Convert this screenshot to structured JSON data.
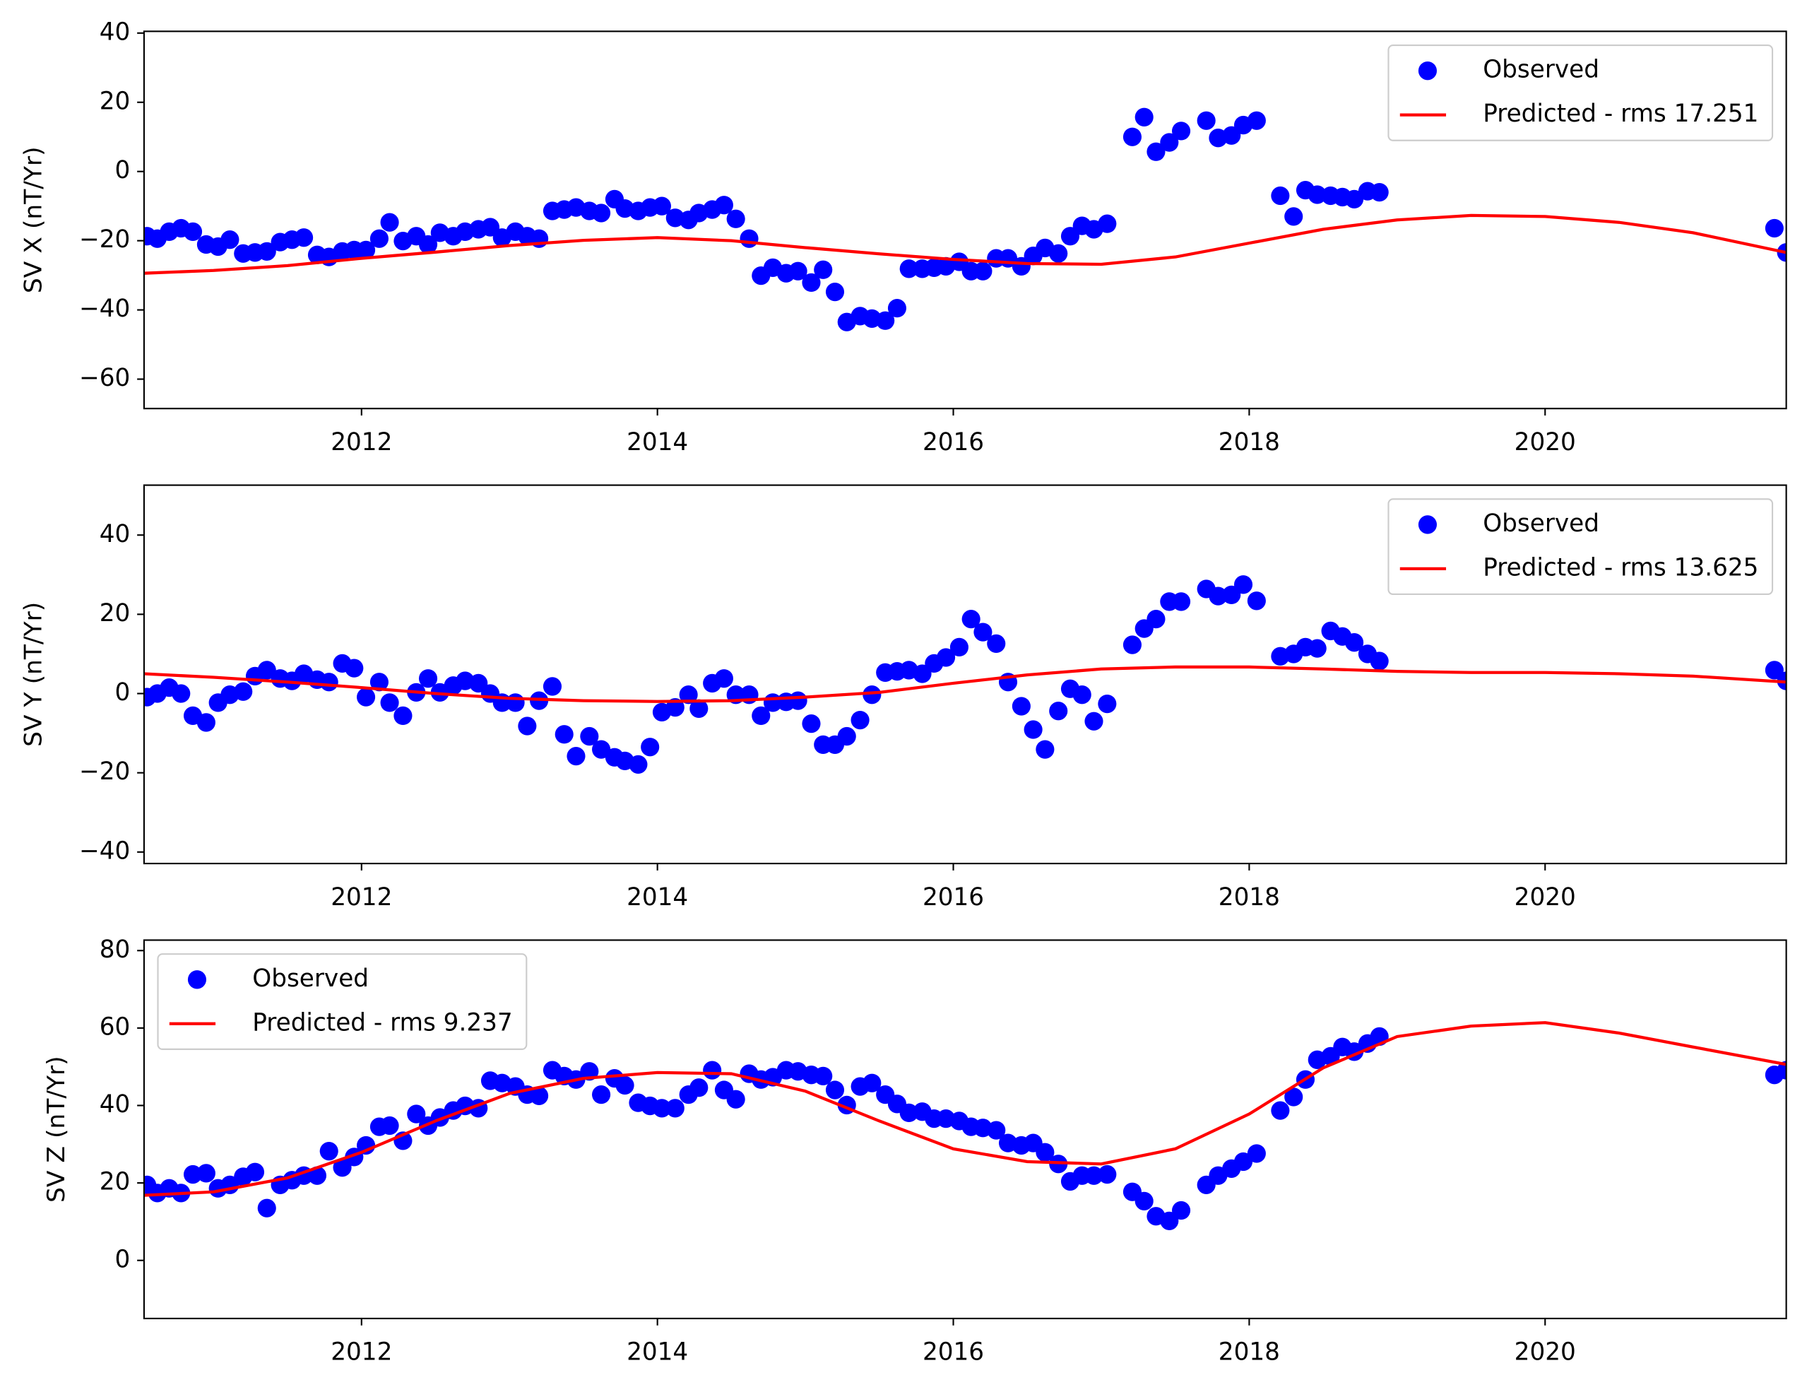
{
  "chart_data": [
    {
      "type": "line",
      "ylabel": "SV X (nT/Yr)",
      "legend": "upper right",
      "grid": false,
      "xlim": [
        2010.53,
        2021.63
      ],
      "xticks": [
        2012,
        2014,
        2016,
        2018,
        2020
      ],
      "ylim": [
        -68.5,
        40.5
      ],
      "yticks": [
        {
          "value": -60,
          "label": "−60"
        },
        {
          "value": -40,
          "label": "−40"
        },
        {
          "value": -20,
          "label": "−20"
        },
        0,
        20,
        40
      ],
      "series": [
        {
          "name": "Observed",
          "color": "#0000ff",
          "style": "markers",
          "x": [
            2010.55,
            2010.62,
            2010.7,
            2010.78,
            2010.86,
            2010.95,
            2011.03,
            2011.11,
            2011.2,
            2011.28,
            2011.36,
            2011.45,
            2011.53,
            2011.61,
            2011.7,
            2011.78,
            2011.87,
            2011.95,
            2012.03,
            2012.12,
            2012.19,
            2012.28,
            2012.37,
            2012.45,
            2012.53,
            2012.62,
            2012.7,
            2012.79,
            2012.87,
            2012.95,
            2013.04,
            2013.12,
            2013.2,
            2013.29,
            2013.37,
            2013.45,
            2013.54,
            2013.62,
            2013.71,
            2013.78,
            2013.87,
            2013.95,
            2014.03,
            2014.12,
            2014.21,
            2014.28,
            2014.37,
            2014.45,
            2014.53,
            2014.62,
            2014.7,
            2014.78,
            2014.87,
            2014.95,
            2015.04,
            2015.12,
            2015.2,
            2015.28,
            2015.37,
            2015.45,
            2015.54,
            2015.62,
            2015.7,
            2015.79,
            2015.87,
            2015.95,
            2016.04,
            2016.12,
            2016.2,
            2016.29,
            2016.37,
            2016.46,
            2016.54,
            2016.62,
            2016.71,
            2016.79,
            2016.87,
            2016.95,
            2017.04,
            2017.21,
            2017.29,
            2017.37,
            2017.46,
            2017.54,
            2017.71,
            2017.79,
            2017.88,
            2017.96,
            2018.05,
            2018.21,
            2018.3,
            2018.38,
            2018.46,
            2018.55,
            2018.63,
            2018.71,
            2018.8,
            2018.88,
            2021.55,
            2021.63
          ],
          "values": [
            -18.7,
            -19.4,
            -17.4,
            -16.4,
            -17.4,
            -21.1,
            -21.7,
            -19.7,
            -23.7,
            -23.4,
            -23.1,
            -20.4,
            -19.7,
            -19.1,
            -24.1,
            -24.7,
            -23.1,
            -22.7,
            -22.7,
            -19.4,
            -14.7,
            -20.1,
            -18.7,
            -21.1,
            -17.7,
            -18.7,
            -17.4,
            -16.7,
            -16.1,
            -19.1,
            -17.4,
            -18.7,
            -19.4,
            -11.4,
            -11.0,
            -10.4,
            -11.4,
            -12.0,
            -8.0,
            -10.7,
            -11.4,
            -10.4,
            -10.0,
            -13.4,
            -14.0,
            -12.0,
            -11.0,
            -9.7,
            -13.7,
            -19.4,
            -30.1,
            -27.8,
            -29.4,
            -28.8,
            -32.1,
            -28.4,
            -34.8,
            -43.5,
            -41.8,
            -42.5,
            -43.1,
            -39.5,
            -28.1,
            -28.1,
            -27.8,
            -27.4,
            -26.1,
            -28.8,
            -28.8,
            -25.1,
            -25.1,
            -27.4,
            -24.4,
            -22.1,
            -23.7,
            -18.7,
            -15.7,
            -16.7,
            -15.1,
            10.0,
            15.7,
            5.7,
            8.4,
            11.7,
            14.7,
            9.7,
            10.4,
            13.4,
            14.7,
            -7.0,
            -13.0,
            -5.4,
            -6.7,
            -7.0,
            -7.4,
            -8.0,
            -5.7,
            -6.0,
            -16.4,
            -23.4
          ]
        },
        {
          "name": "Predicted - rms 17.251",
          "color": "#ff0000",
          "style": "line",
          "x": [
            2010.53,
            2011,
            2011.5,
            2012,
            2012.5,
            2013,
            2013.5,
            2014,
            2014.5,
            2015,
            2015.5,
            2016,
            2016.5,
            2017,
            2017.5,
            2018,
            2018.5,
            2019,
            2019.5,
            2020,
            2020.5,
            2021,
            2021.63
          ],
          "values": [
            -29.4,
            -28.6,
            -27.2,
            -25.1,
            -23.3,
            -21.4,
            -19.9,
            -19.1,
            -20.0,
            -22.0,
            -23.8,
            -25.4,
            -26.6,
            -26.8,
            -24.7,
            -20.7,
            -16.7,
            -14.0,
            -12.7,
            -13.0,
            -14.7,
            -17.7,
            -23.4
          ]
        }
      ]
    },
    {
      "type": "line",
      "ylabel": "SV Y (nT/Yr)",
      "legend": "upper right",
      "grid": false,
      "xlim": [
        2010.53,
        2021.63
      ],
      "xticks": [
        2012,
        2014,
        2016,
        2018,
        2020
      ],
      "ylim": [
        -42.9,
        52.6
      ],
      "yticks": [
        {
          "value": -40,
          "label": "−40"
        },
        {
          "value": -20,
          "label": "−20"
        },
        0,
        20,
        40
      ],
      "series": [
        {
          "name": "Observed",
          "color": "#0000ff",
          "style": "markers",
          "x": [
            2010.55,
            2010.62,
            2010.7,
            2010.78,
            2010.86,
            2010.95,
            2011.03,
            2011.11,
            2011.2,
            2011.28,
            2011.36,
            2011.45,
            2011.53,
            2011.61,
            2011.7,
            2011.78,
            2011.87,
            2011.95,
            2012.03,
            2012.12,
            2012.19,
            2012.28,
            2012.37,
            2012.45,
            2012.53,
            2012.62,
            2012.7,
            2012.79,
            2012.87,
            2012.95,
            2013.04,
            2013.12,
            2013.2,
            2013.29,
            2013.37,
            2013.45,
            2013.54,
            2013.62,
            2013.71,
            2013.78,
            2013.87,
            2013.95,
            2014.03,
            2014.12,
            2014.21,
            2014.28,
            2014.37,
            2014.45,
            2014.53,
            2014.62,
            2014.7,
            2014.78,
            2014.87,
            2014.95,
            2015.04,
            2015.12,
            2015.2,
            2015.28,
            2015.37,
            2015.45,
            2015.54,
            2015.62,
            2015.7,
            2015.79,
            2015.87,
            2015.95,
            2016.04,
            2016.12,
            2016.2,
            2016.29,
            2016.37,
            2016.46,
            2016.54,
            2016.62,
            2016.71,
            2016.79,
            2016.87,
            2016.95,
            2017.04,
            2017.21,
            2017.29,
            2017.37,
            2017.46,
            2017.54,
            2017.71,
            2017.79,
            2017.88,
            2017.96,
            2018.05,
            2018.21,
            2018.3,
            2018.38,
            2018.46,
            2018.55,
            2018.63,
            2018.71,
            2018.8,
            2018.88,
            2021.55,
            2021.63
          ],
          "values": [
            -0.9,
            0,
            1.5,
            0,
            -5.6,
            -7.3,
            -2.3,
            -0.3,
            0.5,
            4.4,
            5.9,
            3.8,
            3.2,
            5.0,
            3.5,
            2.9,
            7.6,
            6.4,
            -0.9,
            2.9,
            -2.3,
            -5.6,
            0.3,
            3.8,
            0.3,
            2.0,
            3.2,
            2.6,
            0,
            -2.3,
            -2.3,
            -8.2,
            -1.8,
            1.8,
            -10.3,
            -15.8,
            -10.8,
            -14.1,
            -16.1,
            -17.0,
            -17.9,
            -13.5,
            -4.7,
            -3.5,
            -0.3,
            -3.8,
            2.6,
            3.8,
            -0.3,
            -0.3,
            -5.6,
            -2.3,
            -2.1,
            -1.8,
            -7.6,
            -12.9,
            -12.9,
            -10.8,
            -6.7,
            -0.3,
            5.3,
            5.6,
            5.9,
            5.0,
            7.6,
            9.1,
            11.7,
            18.8,
            15.5,
            12.6,
            2.9,
            -3.2,
            -9.1,
            -14.1,
            -4.4,
            1.2,
            -0.3,
            -7.0,
            -2.6,
            12.3,
            16.4,
            18.8,
            23.2,
            23.2,
            26.4,
            24.6,
            24.9,
            27.5,
            23.4,
            9.4,
            10.0,
            11.7,
            11.4,
            15.8,
            14.4,
            12.9,
            10.0,
            8.2,
            5.9,
            3.2
          ]
        },
        {
          "name": "Predicted - rms 13.625",
          "color": "#ff0000",
          "style": "line",
          "x": [
            2010.53,
            2011,
            2011.5,
            2012,
            2012.5,
            2013,
            2013.5,
            2014,
            2014.5,
            2015,
            2015.5,
            2016,
            2016.5,
            2017,
            2017.5,
            2018,
            2018.5,
            2019,
            2019.5,
            2020,
            2020.5,
            2021,
            2021.63
          ],
          "values": [
            5.0,
            4.1,
            2.9,
            1.5,
            0,
            -1.2,
            -1.8,
            -2.0,
            -1.8,
            -0.9,
            0.3,
            2.6,
            4.7,
            6.2,
            6.7,
            6.7,
            6.2,
            5.6,
            5.3,
            5.3,
            5.0,
            4.4,
            2.9
          ]
        }
      ]
    },
    {
      "type": "line",
      "ylabel": "SV Z (nT/Yr)",
      "legend": "upper left",
      "grid": false,
      "xlim": [
        2010.53,
        2021.63
      ],
      "xticks": [
        2012,
        2014,
        2016,
        2018,
        2020
      ],
      "ylim": [
        -15,
        82.7
      ],
      "yticks": [
        0,
        20,
        40,
        60,
        80
      ],
      "series": [
        {
          "name": "Observed",
          "color": "#0000ff",
          "style": "markers",
          "x": [
            2010.55,
            2010.62,
            2010.7,
            2010.78,
            2010.86,
            2010.95,
            2011.03,
            2011.11,
            2011.2,
            2011.28,
            2011.36,
            2011.45,
            2011.53,
            2011.61,
            2011.7,
            2011.78,
            2011.87,
            2011.95,
            2012.03,
            2012.12,
            2012.19,
            2012.28,
            2012.37,
            2012.45,
            2012.53,
            2012.62,
            2012.7,
            2012.79,
            2012.87,
            2012.95,
            2013.04,
            2013.12,
            2013.2,
            2013.29,
            2013.37,
            2013.45,
            2013.54,
            2013.62,
            2013.71,
            2013.78,
            2013.87,
            2013.95,
            2014.03,
            2014.12,
            2014.21,
            2014.28,
            2014.37,
            2014.45,
            2014.53,
            2014.62,
            2014.7,
            2014.78,
            2014.87,
            2014.95,
            2015.04,
            2015.12,
            2015.2,
            2015.28,
            2015.37,
            2015.45,
            2015.54,
            2015.62,
            2015.7,
            2015.79,
            2015.87,
            2015.95,
            2016.04,
            2016.12,
            2016.2,
            2016.29,
            2016.37,
            2016.46,
            2016.54,
            2016.62,
            2016.71,
            2016.79,
            2016.87,
            2016.95,
            2017.04,
            2017.21,
            2017.29,
            2017.37,
            2017.46,
            2017.54,
            2017.71,
            2017.79,
            2017.88,
            2017.96,
            2018.05,
            2018.21,
            2018.3,
            2018.38,
            2018.46,
            2018.55,
            2018.63,
            2018.71,
            2018.8,
            2018.88,
            2021.55,
            2021.63
          ],
          "values": [
            19.5,
            17.4,
            18.6,
            17.4,
            22.2,
            22.5,
            18.6,
            19.5,
            21.6,
            22.8,
            13.5,
            19.5,
            20.7,
            21.9,
            21.9,
            28.2,
            24.0,
            26.7,
            29.7,
            34.5,
            34.8,
            30.9,
            37.8,
            34.8,
            36.9,
            38.7,
            39.9,
            39.3,
            46.4,
            45.8,
            44.9,
            42.8,
            42.5,
            49.1,
            47.6,
            46.7,
            48.8,
            42.8,
            47.0,
            45.2,
            40.7,
            39.9,
            39.3,
            39.3,
            42.8,
            44.6,
            49.1,
            44.0,
            41.6,
            48.2,
            46.7,
            47.3,
            49.1,
            48.8,
            47.9,
            47.6,
            44.0,
            40.1,
            44.9,
            45.8,
            42.8,
            40.4,
            38.1,
            38.4,
            36.6,
            36.6,
            36.0,
            34.5,
            34.2,
            33.6,
            30.3,
            29.7,
            30.3,
            27.9,
            24.9,
            20.4,
            21.9,
            21.9,
            22.2,
            17.7,
            15.3,
            11.4,
            10.2,
            12.9,
            19.5,
            21.9,
            23.7,
            25.5,
            27.6,
            38.7,
            42.2,
            46.7,
            51.8,
            52.7,
            55.1,
            53.9,
            56.0,
            57.8,
            47.9,
            49.1
          ]
        },
        {
          "name": "Predicted - rms 9.237",
          "color": "#ff0000",
          "style": "line",
          "x": [
            2010.53,
            2011,
            2011.5,
            2012,
            2012.5,
            2013,
            2013.5,
            2014,
            2014.5,
            2015,
            2015.5,
            2016,
            2016.5,
            2017,
            2017.5,
            2018,
            2018.5,
            2019,
            2019.5,
            2020,
            2020.5,
            2021,
            2021.63
          ],
          "values": [
            16.8,
            17.7,
            21.3,
            27.9,
            36.0,
            43.1,
            47.0,
            48.5,
            48.2,
            43.7,
            36.0,
            28.8,
            25.5,
            24.9,
            28.8,
            37.8,
            49.7,
            57.8,
            60.5,
            61.4,
            58.7,
            55.1,
            50.6
          ]
        }
      ]
    }
  ]
}
